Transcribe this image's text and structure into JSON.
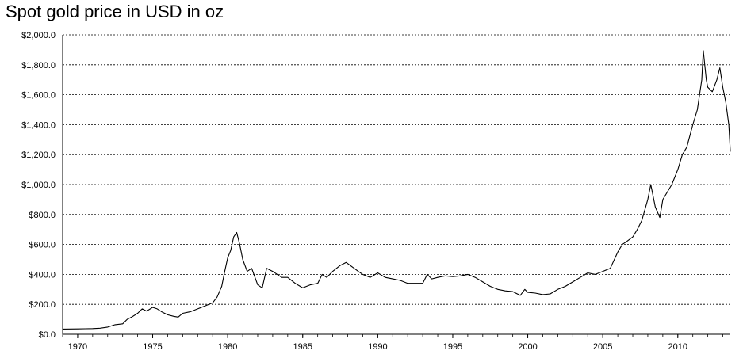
{
  "chart_data": {
    "type": "line",
    "title": "Spot gold price in USD in oz",
    "xlabel": "",
    "ylabel": "",
    "xlim": [
      1969.0,
      2013.5
    ],
    "ylim": [
      0,
      2000
    ],
    "grid": true,
    "legend": "none",
    "line_color": "#000000",
    "y_ticks": [
      0,
      200,
      400,
      600,
      800,
      1000,
      1200,
      1400,
      1600,
      1800,
      2000
    ],
    "y_tick_labels": [
      "$0.0",
      "$200.0",
      "$400.0",
      "$600.0",
      "$800.0",
      "$1,000.0",
      "$1,200.0",
      "$1,400.0",
      "$1,600.0",
      "$1,800.0",
      "$2,000.0"
    ],
    "x_ticks": [
      1970,
      1975,
      1980,
      1985,
      1990,
      1995,
      2000,
      2005,
      2010
    ],
    "x_tick_labels": [
      "1970",
      "1975",
      "1980",
      "1985",
      "1990",
      "1995",
      "2000",
      "2005",
      "2010"
    ],
    "series": [
      {
        "x": [
          1969.0,
          1970.0,
          1970.5,
          1971.0,
          1971.5,
          1972.0,
          1972.5,
          1973.0,
          1973.3,
          1973.6,
          1974.0,
          1974.3,
          1974.6,
          1975.0,
          1975.3,
          1975.6,
          1976.0,
          1976.4,
          1976.7,
          1977.0,
          1977.5,
          1978.0,
          1978.5,
          1979.0,
          1979.3,
          1979.6,
          1979.8,
          1980.0,
          1980.2,
          1980.4,
          1980.6,
          1980.8,
          1981.0,
          1981.3,
          1981.6,
          1982.0,
          1982.3,
          1982.6,
          1983.0,
          1983.3,
          1983.6,
          1984.0,
          1984.5,
          1985.0,
          1985.5,
          1986.0,
          1986.3,
          1986.6,
          1987.0,
          1987.5,
          1987.9,
          1988.3,
          1988.7,
          1989.0,
          1989.5,
          1990.0,
          1990.5,
          1991.0,
          1991.5,
          1992.0,
          1992.5,
          1993.0,
          1993.3,
          1993.6,
          1994.0,
          1994.5,
          1995.0,
          1995.5,
          1996.0,
          1996.5,
          1997.0,
          1997.5,
          1998.0,
          1998.5,
          1999.0,
          1999.5,
          1999.8,
          2000.0,
          2000.5,
          2001.0,
          2001.5,
          2002.0,
          2002.5,
          2003.0,
          2003.5,
          2004.0,
          2004.5,
          2005.0,
          2005.5,
          2006.0,
          2006.3,
          2006.6,
          2007.0,
          2007.3,
          2007.6,
          2008.0,
          2008.2,
          2008.5,
          2008.8,
          2009.0,
          2009.3,
          2009.6,
          2010.0,
          2010.3,
          2010.6,
          2011.0,
          2011.3,
          2011.6,
          2011.7,
          2011.9,
          2012.0,
          2012.3,
          2012.6,
          2012.8,
          2013.0,
          2013.2,
          2013.4,
          2013.5
        ],
        "y": [
          35,
          36,
          37,
          38,
          41,
          48,
          64,
          70,
          100,
          115,
          140,
          170,
          155,
          180,
          170,
          150,
          130,
          120,
          115,
          140,
          150,
          170,
          190,
          210,
          250,
          320,
          420,
          510,
          560,
          650,
          680,
          600,
          500,
          420,
          440,
          330,
          310,
          440,
          420,
          400,
          380,
          380,
          340,
          310,
          330,
          340,
          400,
          380,
          420,
          460,
          480,
          450,
          420,
          400,
          380,
          410,
          380,
          370,
          360,
          340,
          340,
          340,
          400,
          370,
          380,
          390,
          385,
          390,
          400,
          380,
          350,
          320,
          300,
          290,
          285,
          260,
          300,
          280,
          275,
          265,
          270,
          300,
          320,
          350,
          380,
          410,
          400,
          420,
          440,
          550,
          600,
          620,
          650,
          700,
          760,
          900,
          1000,
          850,
          780,
          900,
          950,
          1000,
          1100,
          1200,
          1250,
          1400,
          1500,
          1700,
          1895,
          1700,
          1650,
          1620,
          1700,
          1780,
          1650,
          1550,
          1400,
          1220
        ]
      }
    ]
  }
}
